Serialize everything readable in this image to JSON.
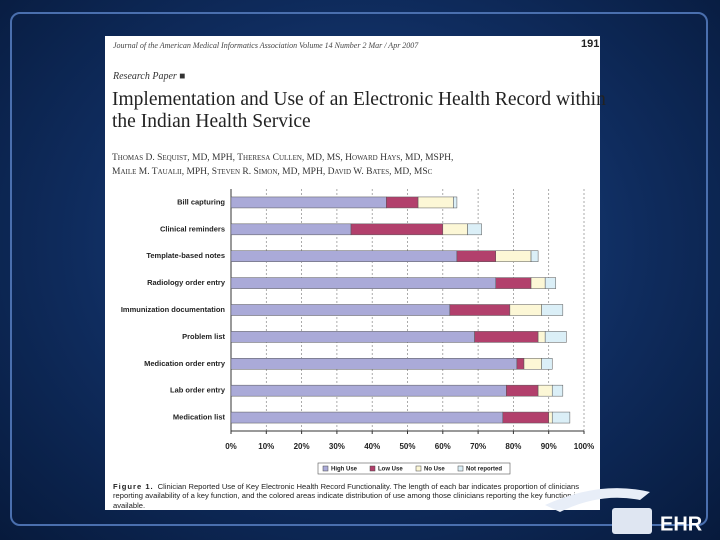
{
  "document": {
    "journal": "Journal of the American Medical Informatics Association   Volume 14   Number 2   Mar / Apr 2007",
    "page_number": "191",
    "section": "Research Paper",
    "title": [
      "Implementation and Use of an Electronic Health Record within",
      "the Indian Health Service"
    ],
    "authors": [
      "Thomas D. Sequist, MD, MPH, Theresa Cullen, MD, MS, Howard Hays, MD, MSPH,",
      "Maile M. Taualii, MPH, Steven R. Simon, MD, MPH, David W. Bates, MD, MSc"
    ],
    "figure_label": "Figure 1.",
    "caption": "Clinician Reported Use of Key Electronic Health Record Functionality. The length of each bar indicates proportion of clinicians reporting availability of a key function, and the colored areas indicate distribution of use among those clinicians reporting the key function is available.",
    "logo": "EHR"
  },
  "chart_data": {
    "type": "stacked-bar-horizontal",
    "categories": [
      "Bill capturing",
      "Clinical reminders",
      "Template-based notes",
      "Radiology order entry",
      "Immunization documentation",
      "Problem list",
      "Medication order entry",
      "Lab order entry",
      "Medication list"
    ],
    "series": [
      {
        "name": "High Use",
        "color": "#aaaad8",
        "values": [
          44,
          34,
          64,
          75,
          62,
          69,
          81,
          78,
          77
        ]
      },
      {
        "name": "Low Use",
        "color": "#b2406c",
        "values": [
          9,
          26,
          11,
          10,
          17,
          18,
          2,
          9,
          13
        ]
      },
      {
        "name": "No Use",
        "color": "#fcf7d6",
        "values": [
          10,
          7,
          10,
          4,
          9,
          2,
          5,
          4,
          1
        ]
      },
      {
        "name": "Not reported",
        "color": "#dbeff7",
        "values": [
          1,
          4,
          2,
          3,
          6,
          6,
          3,
          3,
          5
        ]
      }
    ],
    "xlim": [
      0,
      100
    ],
    "xticks": [
      {
        "value": 0,
        "label": "0%"
      },
      {
        "value": 10,
        "label": "10%"
      },
      {
        "value": 20,
        "label": "20%"
      },
      {
        "value": 30,
        "label": "30%"
      },
      {
        "value": 40,
        "label": "40%"
      },
      {
        "value": 50,
        "label": "50%"
      },
      {
        "value": 60,
        "label": "60%"
      },
      {
        "value": 70,
        "label": "70%"
      },
      {
        "value": 80,
        "label": "80%"
      },
      {
        "value": 90,
        "label": "90%"
      },
      {
        "value": 100,
        "label": "100%"
      }
    ],
    "grid": true,
    "legend": "bottom"
  }
}
